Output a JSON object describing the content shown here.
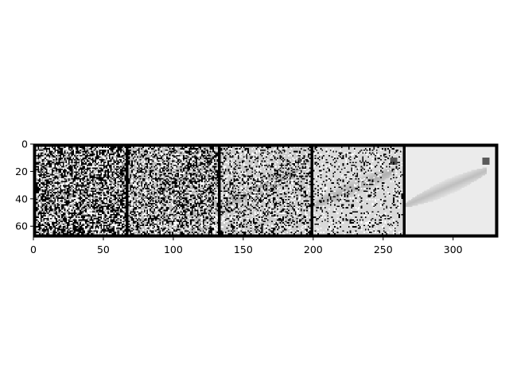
{
  "chart_data": {
    "type": "heatmap",
    "title": "",
    "xlabel": "",
    "ylabel": "",
    "description_panels": [
      "noise",
      "noise",
      "noise",
      "noise",
      "clean"
    ],
    "panels": [
      {
        "index": 0,
        "noise_level": 0.85
      },
      {
        "index": 1,
        "noise_level": 0.65
      },
      {
        "index": 2,
        "noise_level": 0.45
      },
      {
        "index": 3,
        "noise_level": 0.25
      },
      {
        "index": 4,
        "noise_level": 0.0
      }
    ],
    "panel_size": 64,
    "border": 2,
    "xlim": [
      0,
      332
    ],
    "ylim": [
      68,
      0
    ],
    "xticks": [
      0,
      50,
      100,
      150,
      200,
      250,
      300
    ],
    "xtick_labels": [
      "0",
      "50",
      "100",
      "150",
      "200",
      "250",
      "300"
    ],
    "yticks": [
      0,
      20,
      40,
      60
    ],
    "ytick_labels": [
      "0",
      "20",
      "40",
      "60"
    ],
    "colormap": "gray",
    "grid": false
  }
}
